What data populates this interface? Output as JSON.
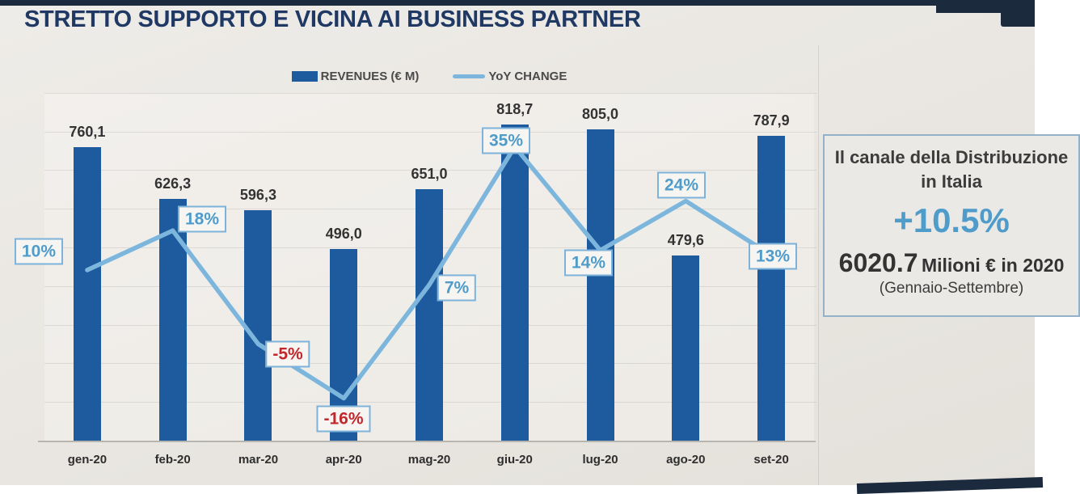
{
  "slide": {
    "title": "STRETTO SUPPORTO E VICINA AI BUSINESS PARTNER"
  },
  "legend": {
    "revenues_label": "REVENUES (€ M)",
    "yoy_label": "YoY CHANGE"
  },
  "chart_data": {
    "type": "combo-bar-line",
    "categories": [
      "gen-20",
      "feb-20",
      "mar-20",
      "apr-20",
      "mag-20",
      "giu-20",
      "lug-20",
      "ago-20",
      "set-20"
    ],
    "bar_series": {
      "name": "REVENUES (€ M)",
      "values": [
        760.1,
        626.3,
        596.3,
        496.0,
        651.0,
        818.7,
        805.0,
        479.6,
        787.9
      ],
      "display_labels": [
        "760,1",
        "626,3",
        "596,3",
        "496,0",
        "651,0",
        "818,7",
        "805,0",
        "479,6",
        "787,9"
      ],
      "color": "#1d5b9e"
    },
    "line_series": {
      "name": "YoY CHANGE",
      "values_percent": [
        10,
        18,
        -5,
        -16,
        7,
        35,
        14,
        24,
        13
      ],
      "display_labels": [
        "10%",
        "18%",
        "-5%",
        "-16%",
        "7%",
        "35%",
        "14%",
        "24%",
        "13%"
      ],
      "color": "#7db6dc",
      "label_color_positive": "#4f9ccb",
      "label_color_negative": "#c1282e"
    },
    "ylim": [
      0,
      900
    ],
    "grid": {
      "horizontal": true,
      "interval": 100
    },
    "legend_position": "top-center",
    "title": "STRETTO SUPPORTO E VICINA AI BUSINESS PARTNER"
  },
  "panel": {
    "title_line1": "Il canale della Distribuzione",
    "title_line2": "in Italia",
    "growth_pct": "+10.5%",
    "total_value": "6020.7",
    "total_unit": "Milioni € in 2020",
    "period": "(Gennaio-Settembre)"
  },
  "colors": {
    "bar": "#1d5b9e",
    "line": "#7db6dc",
    "pct_positive": "#4f9ccb",
    "pct_negative": "#c1282e",
    "title_navy": "#1f3864",
    "panel_accent": "#4f9ccb",
    "window_edge": "#1c2a3e",
    "background": "#e9e6e1"
  }
}
